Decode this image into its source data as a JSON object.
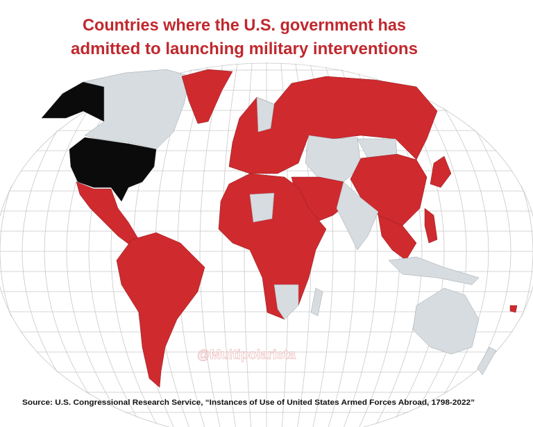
{
  "title": [
    "Countries where the U.S. government has",
    "admitted to launching military interventions"
  ],
  "watermark": "@Multipolarista",
  "source": "Source: U.S. Congressional Research Service, “Instances of Use of United States Armed Forces Abroad, 1798-2022”"
}
